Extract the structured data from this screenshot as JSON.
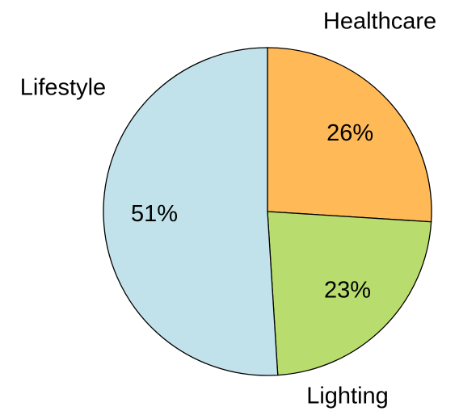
{
  "chart_data": {
    "type": "pie",
    "categories": [
      "Healthcare",
      "Lighting",
      "Lifestyle"
    ],
    "values": [
      26,
      23,
      51
    ],
    "value_labels": [
      "26%",
      "23%",
      "51%"
    ],
    "colors": [
      "#ffb957",
      "#b8dd6e",
      "#c2e2eb"
    ]
  }
}
